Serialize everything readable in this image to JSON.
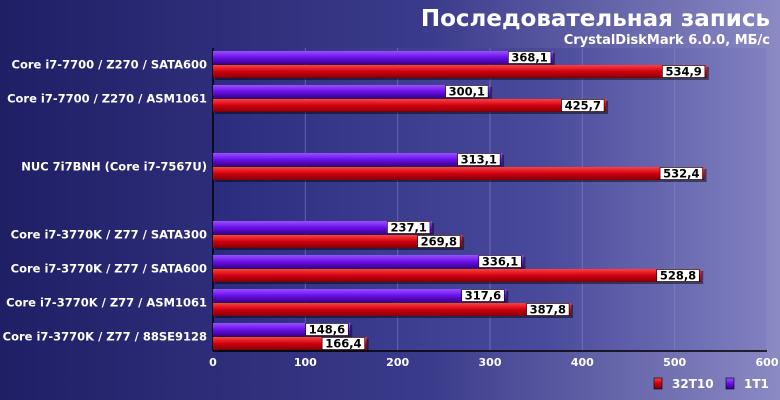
{
  "chart_data": {
    "type": "bar",
    "orientation": "horizontal",
    "title": "Последовательная запись",
    "subtitle": "CrystalDiskMark 6.0.0, МБ/с",
    "categories": [
      "Core i7-7700 / Z270 / SATA600",
      "Core i7-7700 / Z270 / ASM1061",
      "NUC 7i7BNH (Core i7-7567U)",
      "Core i7-3770K / Z77 / SATA300",
      "Core i7-3770K / Z77 / SATA600",
      "Core i7-3770K / Z77 / ASM1061",
      "Core i7-3770K / Z77 / 88SE9128"
    ],
    "group_gap_after": [
      1,
      2
    ],
    "series": [
      {
        "name": "1T1",
        "color": "#6a00e0",
        "values": [
          368.1,
          300.1,
          313.1,
          237.1,
          336.1,
          317.6,
          148.6
        ],
        "labels": [
          "368,1",
          "300,1",
          "313,1",
          "237,1",
          "336,1",
          "317,6",
          "148,6"
        ]
      },
      {
        "name": "32T10",
        "color": "#d00010",
        "values": [
          534.9,
          425.7,
          532.4,
          269.8,
          528.8,
          387.8,
          166.4
        ],
        "labels": [
          "534,9",
          "425,7",
          "532,4",
          "269,8",
          "528,8",
          "387,8",
          "166,4"
        ]
      }
    ],
    "xlim": [
      0,
      600
    ],
    "xticks": [
      0,
      100,
      200,
      300,
      400,
      500,
      600
    ],
    "grid": true,
    "legend": {
      "position": "bottom-right",
      "order": [
        "32T10",
        "1T1"
      ]
    }
  }
}
